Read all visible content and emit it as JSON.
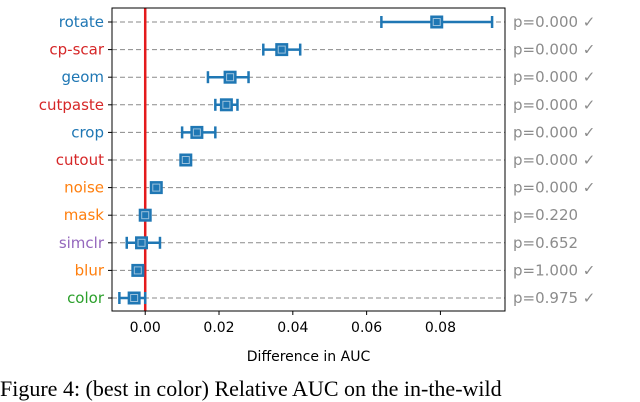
{
  "chart_data": {
    "type": "scatter",
    "xlabel": "Difference in AUC",
    "ylabel": "",
    "title": "",
    "xlim": [
      -0.009,
      0.0975
    ],
    "xticks": [
      0.0,
      0.02,
      0.04,
      0.06,
      0.08
    ],
    "xtick_labels": [
      "0.00",
      "0.02",
      "0.04",
      "0.06",
      "0.08"
    ],
    "grid": "horizontal dashed",
    "reference_line": {
      "x": 0.0,
      "color": "#e41a1c"
    },
    "marker_color": "#1f77b4",
    "categories": [
      "rotate",
      "cp-scar",
      "geom",
      "cutpaste",
      "crop",
      "cutout",
      "noise",
      "mask",
      "simclr",
      "blur",
      "color"
    ],
    "label_colors": [
      "#1f77b4",
      "#d62728",
      "#1f77b4",
      "#d62728",
      "#1f77b4",
      "#d62728",
      "#ff7f0e",
      "#ff7f0e",
      "#9467bd",
      "#ff7f0e",
      "#2ca02c"
    ],
    "points": [
      {
        "label": "rotate",
        "mean": 0.079,
        "low": 0.064,
        "high": 0.094,
        "p": "p=0.000 ✓"
      },
      {
        "label": "cp-scar",
        "mean": 0.037,
        "low": 0.032,
        "high": 0.042,
        "p": "p=0.000 ✓"
      },
      {
        "label": "geom",
        "mean": 0.023,
        "low": 0.017,
        "high": 0.028,
        "p": "p=0.000 ✓"
      },
      {
        "label": "cutpaste",
        "mean": 0.022,
        "low": 0.019,
        "high": 0.025,
        "p": "p=0.000 ✓"
      },
      {
        "label": "crop",
        "mean": 0.014,
        "low": 0.01,
        "high": 0.019,
        "p": "p=0.000 ✓"
      },
      {
        "label": "cutout",
        "mean": 0.011,
        "low": 0.01,
        "high": 0.012,
        "p": "p=0.000 ✓"
      },
      {
        "label": "noise",
        "mean": 0.003,
        "low": 0.002,
        "high": 0.004,
        "p": "p=0.000 ✓"
      },
      {
        "label": "mask",
        "mean": 0.0,
        "low": -0.001,
        "high": 0.001,
        "p": "p=0.220"
      },
      {
        "label": "simclr",
        "mean": -0.001,
        "low": -0.005,
        "high": 0.004,
        "p": "p=0.652"
      },
      {
        "label": "blur",
        "mean": -0.002,
        "low": -0.003,
        "high": -0.001,
        "p": "p=1.000 ✓"
      },
      {
        "label": "color",
        "mean": -0.003,
        "low": -0.007,
        "high": 0.0,
        "p": "p=0.975 ✓"
      }
    ]
  },
  "caption": "Figure 4: (best in color) Relative AUC on the in-the-wild"
}
